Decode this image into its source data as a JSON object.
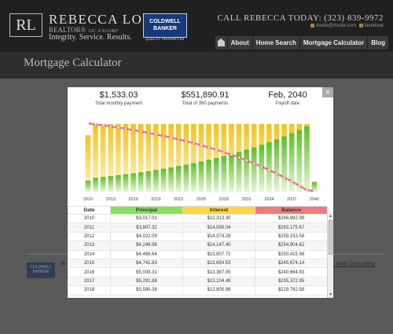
{
  "header": {
    "logo_initials": "RL",
    "brand_name": "REBECCA LOCKE",
    "brand_title": "REALTOR®",
    "license": "LIC. # 0131807",
    "tagline": "Integrity. Service. Results.",
    "coldwell_line1": "COLDWELL",
    "coldwell_line2": "BANKER",
    "coldwell_sub": "QUALITY PROPERTIES",
    "call_text": "CALL REBECCA TODAY: (323) 839-9972",
    "email": "rlocke@rlocke.com",
    "facebook": "facebook"
  },
  "nav": [
    "About",
    "Home Search",
    "Mortgage Calculator",
    "Blog"
  ],
  "page_title": "Mortgage Calculator",
  "footer": {
    "letter": "R",
    "web_credit": "L Web Consulting",
    "logo_text": "COLDWELL BANKER"
  },
  "modal": {
    "close_label": "x",
    "summary": [
      {
        "value": "$1,533.03",
        "label": "Total monthly payment"
      },
      {
        "value": "$551,890.91",
        "label": "Total of 360 payments"
      },
      {
        "value": "Feb, 2040",
        "label": "Payoff date"
      }
    ],
    "table": {
      "headers": [
        "Date",
        "Principal",
        "Interest",
        "Balance"
      ],
      "header_colors": [
        "#ffffff",
        "#88e060",
        "#ffd640",
        "#f07a7a"
      ],
      "rows": [
        [
          "2010",
          "$3,017.01",
          "$12,313.30",
          "$266,982.99"
        ],
        [
          "2011",
          "$3,807.32",
          "$14,589.04",
          "$263,175.67"
        ],
        [
          "2012",
          "$4,022.09",
          "$14,374.28",
          "$259,153.58"
        ],
        [
          "2013",
          "$4,248.96",
          "$14,147.40",
          "$254,904.62"
        ],
        [
          "2014",
          "$4,488.64",
          "$13,907.72",
          "$250,415.98"
        ],
        [
          "2015",
          "$4,741.83",
          "$13,654.53",
          "$245,674.14"
        ],
        [
          "2016",
          "$5,009.31",
          "$13,387.05",
          "$240,664.83"
        ],
        [
          "2017",
          "$5,291.88",
          "$13,104.49",
          "$235,372.95"
        ],
        [
          "2018",
          "$5,590.38",
          "$12,805.98",
          "$229,782.58"
        ]
      ]
    }
  },
  "chart_data": {
    "type": "bar",
    "categories": [
      "2010",
      "2011",
      "2012",
      "2013",
      "2014",
      "2015",
      "2016",
      "2017",
      "2018",
      "2019",
      "2020",
      "2021",
      "2022",
      "2023",
      "2024",
      "2025",
      "2026",
      "2027",
      "2028",
      "2029",
      "2030",
      "2031",
      "2032",
      "2033",
      "2034",
      "2035",
      "2036",
      "2037",
      "2038",
      "2039",
      "2040"
    ],
    "tick_labels": [
      "2010",
      "2013",
      "2016",
      "2019",
      "2022",
      "2025",
      "2028",
      "2031",
      "2034",
      "2037",
      "2040"
    ],
    "series": [
      {
        "values": [
          3017,
          3807,
          4022,
          4249,
          4489,
          4742,
          5009,
          5292,
          5590,
          5906,
          6239,
          6591,
          6963,
          7356,
          7771,
          8209,
          8672,
          9161,
          9678,
          10224,
          10801,
          11410,
          12054,
          12734,
          13453,
          14212,
          15014,
          15861,
          16756,
          17701,
          2500
        ]
      },
      {
        "values": [
          12313,
          14589,
          14374,
          14147,
          13908,
          13655,
          13387,
          13104,
          12806,
          12491,
          12157,
          11805,
          11433,
          11040,
          10625,
          10187,
          9724,
          9235,
          8718,
          8172,
          7595,
          6986,
          6342,
          5662,
          4943,
          4184,
          3382,
          2535,
          1640,
          695,
          330
        ]
      },
      {
        "values": [
          266983,
          263176,
          259154,
          254905,
          250416,
          245674,
          240665,
          235373,
          229783,
          223877,
          217638,
          211047,
          204084,
          196728,
          188957,
          180748,
          172076,
          162915,
          153237,
          143013,
          132212,
          120802,
          108748,
          96014,
          82561,
          68349,
          53335,
          37474,
          20718,
          3017,
          0
        ]
      }
    ],
    "colors": {
      "principal": "#6cc43c",
      "interest": "#f2c82a",
      "balance": "#e0607a"
    },
    "grid": false
  }
}
